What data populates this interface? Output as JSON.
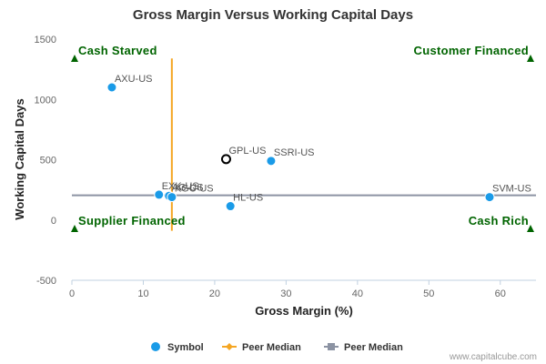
{
  "chart_data": {
    "type": "scatter",
    "title": "Gross Margin Versus Working Capital Days",
    "xlabel": "Gross Margin (%)",
    "ylabel": "Working Capital Days",
    "xlim": [
      0,
      65
    ],
    "ylim": [
      -500,
      1500
    ],
    "x_ticks": [
      "0",
      "10",
      "20",
      "30",
      "40",
      "50",
      "60"
    ],
    "y_ticks": [
      "-500",
      "0",
      "500",
      "1000",
      "1500"
    ],
    "grid": false,
    "series": [
      {
        "name": "Symbol",
        "color": "#1a9be8",
        "points": [
          {
            "label": "AXU-US",
            "x": 5.6,
            "y": 1100
          },
          {
            "label": "EXK-US",
            "x": 12.2,
            "y": 210
          },
          {
            "label": "AG-US",
            "x": 13.6,
            "y": 200
          },
          {
            "label": "KGC-US",
            "x": 14.0,
            "y": 190
          },
          {
            "label": "GPL-US",
            "x": 21.6,
            "y": 505,
            "highlight": true
          },
          {
            "label": "SSRI-US",
            "x": 27.9,
            "y": 490
          },
          {
            "label": "HL-US",
            "x": 22.2,
            "y": 115
          },
          {
            "label": "SVM-US",
            "x": 58.5,
            "y": 190
          }
        ]
      },
      {
        "name": "Peer Median",
        "color": "#f5a623",
        "orientation": "vertical",
        "value": 14.0,
        "range": [
          -90,
          1340
        ]
      },
      {
        "name": "Peer Median",
        "color": "#8c93a3",
        "orientation": "horizontal",
        "value": 205,
        "range": [
          0,
          65
        ]
      }
    ],
    "quadrant_labels": {
      "top_left": "Cash Starved",
      "top_right": "Customer Financed",
      "bottom_left": "Supplier Financed",
      "bottom_right": "Cash Rich"
    },
    "quadrant_color": "#006400",
    "legend_position": "bottom"
  },
  "credit": "www.capitalcube.com"
}
